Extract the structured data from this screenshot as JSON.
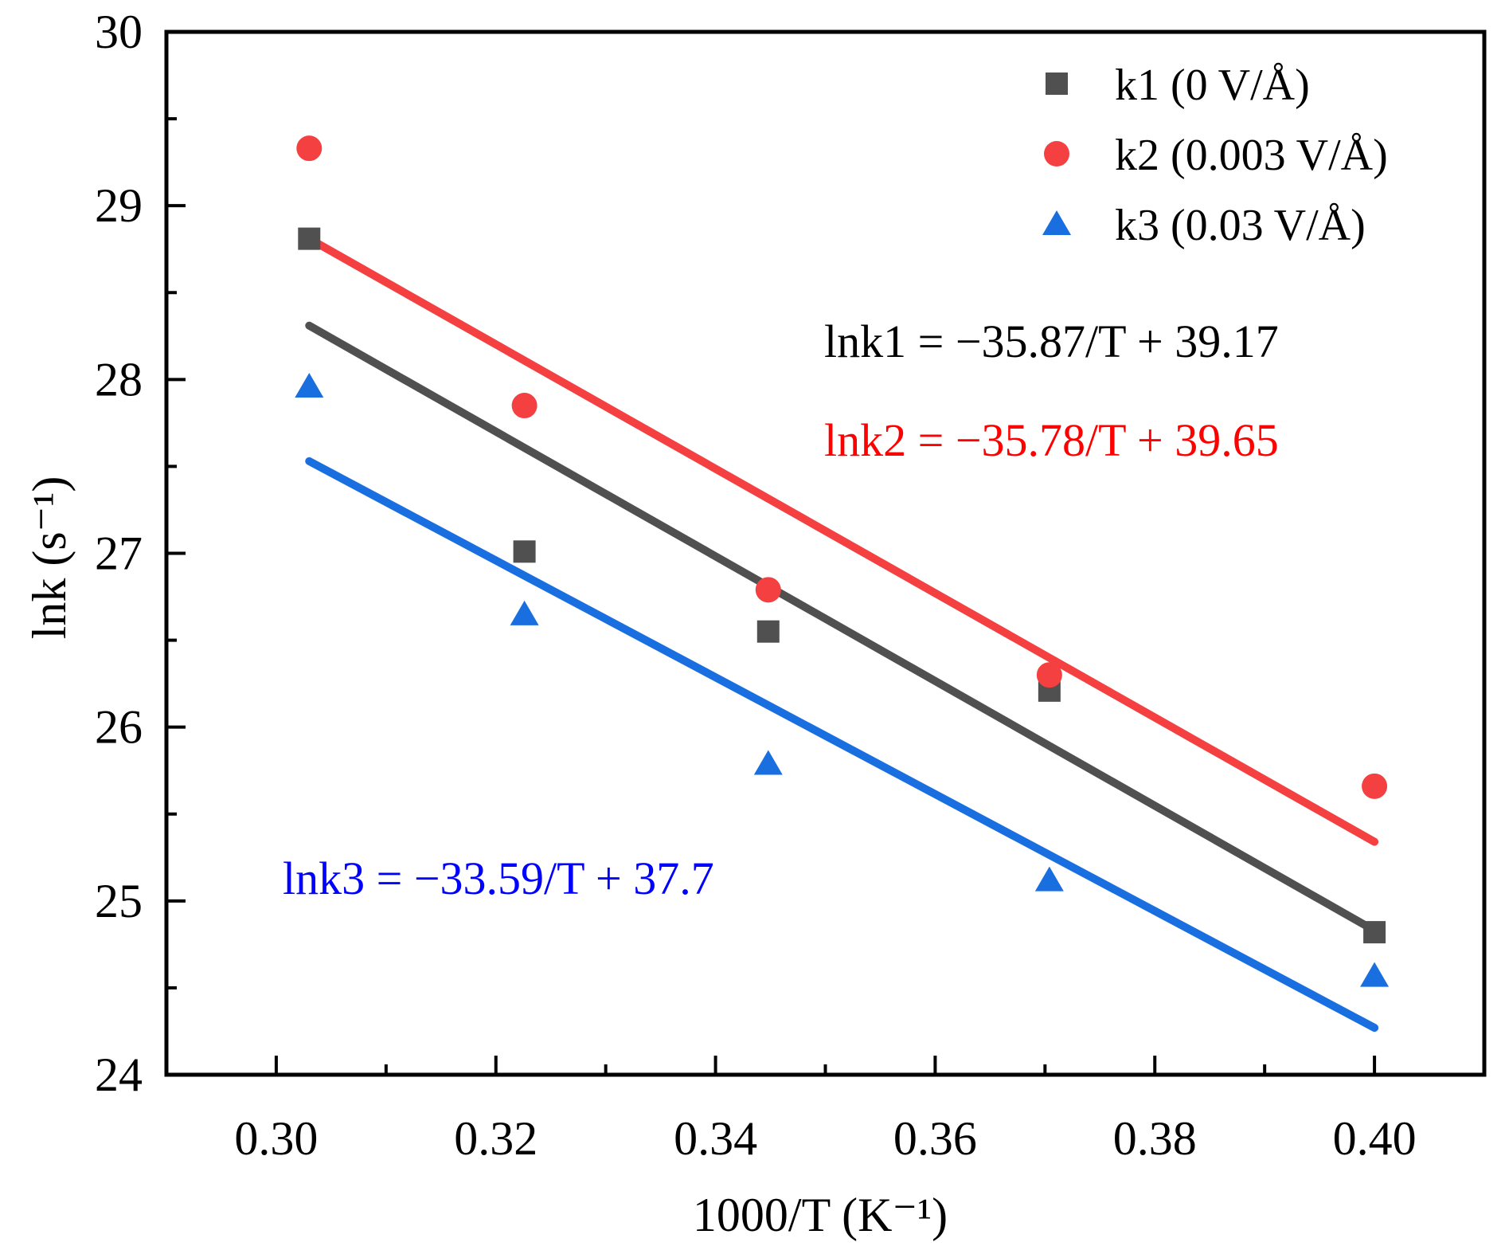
{
  "chart_data": {
    "type": "scatter",
    "title": "",
    "xlabel": "1000/T (K⁻¹)",
    "ylabel": "lnk (s⁻¹)",
    "xlim": [
      0.29,
      0.41
    ],
    "ylim": [
      24,
      30
    ],
    "x_ticks": [
      0.3,
      0.32,
      0.34,
      0.36,
      0.38,
      0.4
    ],
    "x_tick_labels": [
      "0.30",
      "0.32",
      "0.34",
      "0.36",
      "0.38",
      "0.40"
    ],
    "x_minor_ticks": [
      0.31,
      0.33,
      0.35,
      0.37,
      0.39
    ],
    "y_ticks": [
      24,
      25,
      26,
      27,
      28,
      29,
      30
    ],
    "y_tick_labels": [
      "24",
      "25",
      "26",
      "27",
      "28",
      "29",
      "30"
    ],
    "y_minor_ticks": [
      24.5,
      25.5,
      26.5,
      27.5,
      28.5,
      29.5
    ],
    "grid": false,
    "legend_position": "top-right",
    "x": [
      0.303,
      0.3226,
      0.3448,
      0.3704,
      0.4
    ],
    "series": [
      {
        "name": "k1 (0 V/Å)",
        "marker": "square",
        "color": "#505050",
        "values": [
          28.81,
          27.01,
          26.55,
          26.21,
          24.82
        ],
        "fit": {
          "x": [
            0.303,
            0.4
          ],
          "y": [
            28.31,
            24.83
          ]
        },
        "equation": "lnk1 = −35.87/T + 39.17",
        "equation_color": "#000000"
      },
      {
        "name": "k2 (0.003 V/Å)",
        "marker": "circle",
        "color": "#f44040",
        "values": [
          29.33,
          27.85,
          26.79,
          26.3,
          25.66
        ],
        "fit": {
          "x": [
            0.303,
            0.4
          ],
          "y": [
            28.81,
            25.34
          ]
        },
        "equation": "lnk2 = −35.78/T + 39.65",
        "equation_color": "#ff0000"
      },
      {
        "name": "k3 (0.03 V/Å)",
        "marker": "triangle",
        "color": "#1a6fe0",
        "values": [
          27.96,
          26.65,
          25.79,
          25.12,
          24.57
        ],
        "fit": {
          "x": [
            0.303,
            0.4
          ],
          "y": [
            27.53,
            24.27
          ]
        },
        "equation": "lnk3 = −33.59/T + 37.7",
        "equation_color": "#0000ff"
      }
    ]
  }
}
